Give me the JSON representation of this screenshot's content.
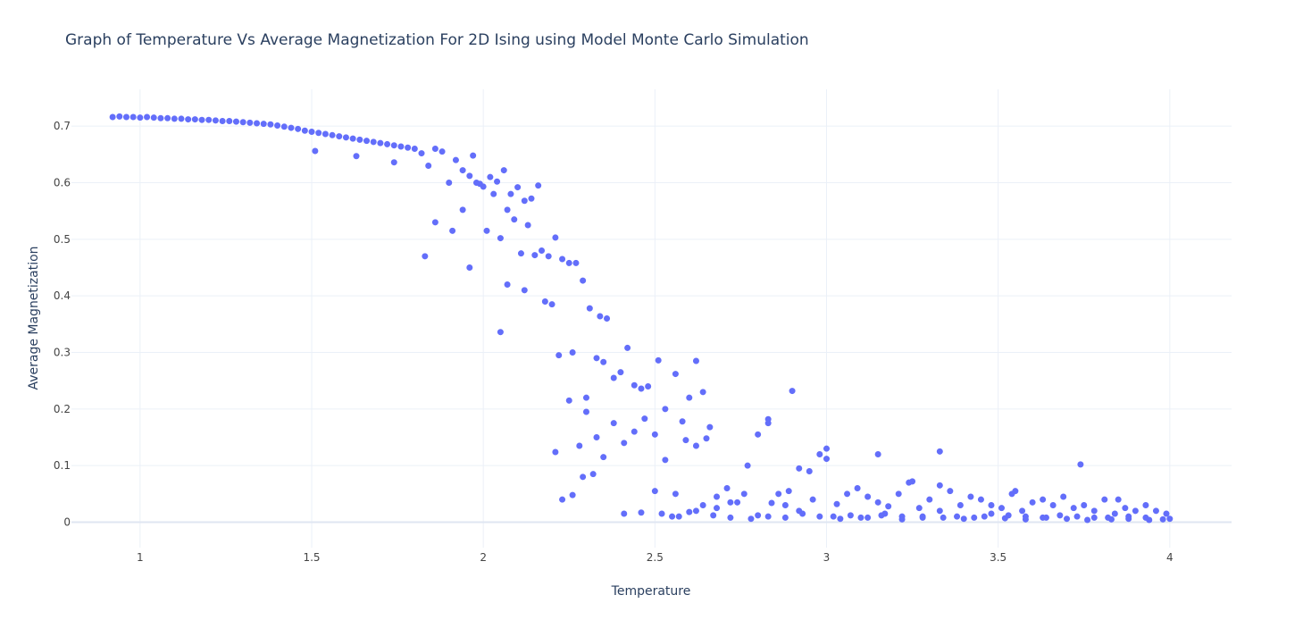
{
  "chart_data": {
    "type": "scatter",
    "title": "Graph of Temperature Vs Average Magnetization For 2D Ising using Model Monte Carlo Simulation",
    "xlabel": "Temperature",
    "ylabel": "Average Magnetization",
    "xlim": [
      0.8,
      4.18
    ],
    "ylim": [
      -0.045,
      0.765
    ],
    "x_ticks": [
      1,
      1.5,
      2,
      2.5,
      3,
      3.5,
      4
    ],
    "x_tick_labels": [
      "1",
      "1.5",
      "2",
      "2.5",
      "3",
      "3.5",
      "4"
    ],
    "y_ticks": [
      0,
      0.1,
      0.2,
      0.3,
      0.4,
      0.5,
      0.6,
      0.7
    ],
    "y_tick_labels": [
      "0",
      "0.1",
      "0.2",
      "0.3",
      "0.4",
      "0.5",
      "0.6",
      "0.7"
    ],
    "grid": true,
    "marker_color": "#636efa",
    "x": [
      0.92,
      0.94,
      0.96,
      0.98,
      1.0,
      1.02,
      1.04,
      1.06,
      1.08,
      1.1,
      1.12,
      1.14,
      1.16,
      1.18,
      1.2,
      1.22,
      1.24,
      1.26,
      1.28,
      1.3,
      1.32,
      1.34,
      1.36,
      1.38,
      1.4,
      1.42,
      1.44,
      1.46,
      1.48,
      1.5,
      1.52,
      1.54,
      1.56,
      1.58,
      1.6,
      1.62,
      1.64,
      1.66,
      1.68,
      1.7,
      1.72,
      1.74,
      1.76,
      1.78,
      1.8,
      1.51,
      1.63,
      1.74,
      1.82,
      1.84,
      1.86,
      1.88,
      1.9,
      1.92,
      1.94,
      1.96,
      1.98,
      2.0,
      2.02,
      2.04,
      2.06,
      2.08,
      2.1,
      2.12,
      2.14,
      2.16,
      1.83,
      1.86,
      1.91,
      1.94,
      1.97,
      1.99,
      2.01,
      2.03,
      2.05,
      2.07,
      2.09,
      2.11,
      2.13,
      2.15,
      2.17,
      2.19,
      2.21,
      2.23,
      2.25,
      2.27,
      2.29,
      2.31,
      2.34,
      2.36,
      1.96,
      2.05,
      2.07,
      2.12,
      2.18,
      2.2,
      2.22,
      2.26,
      2.3,
      2.33,
      2.21,
      2.25,
      2.28,
      2.3,
      2.33,
      2.35,
      2.38,
      2.4,
      2.42,
      2.44,
      2.46,
      2.48,
      2.51,
      2.53,
      2.56,
      2.58,
      2.6,
      2.62,
      2.64,
      2.66,
      2.23,
      2.26,
      2.29,
      2.32,
      2.35,
      2.38,
      2.41,
      2.44,
      2.47,
      2.5,
      2.53,
      2.56,
      2.59,
      2.62,
      2.65,
      2.68,
      2.71,
      2.74,
      2.77,
      2.8,
      2.83,
      2.86,
      2.89,
      2.92,
      2.95,
      2.98,
      2.41,
      2.46,
      2.5,
      2.55,
      2.6,
      2.64,
      2.68,
      2.72,
      2.76,
      2.8,
      2.84,
      2.88,
      2.92,
      2.96,
      3.0,
      3.03,
      3.06,
      3.09,
      3.12,
      3.15,
      3.18,
      3.21,
      3.24,
      3.27,
      3.3,
      3.33,
      3.36,
      3.39,
      3.42,
      3.45,
      3.48,
      3.51,
      3.54,
      3.57,
      3.6,
      3.63,
      3.66,
      3.69,
      3.72,
      3.75,
      3.78,
      3.81,
      3.84,
      3.87,
      3.9,
      3.93,
      3.96,
      3.99,
      3.02,
      3.07,
      3.12,
      3.17,
      3.22,
      3.28,
      3.33,
      3.38,
      3.43,
      3.48,
      3.53,
      3.58,
      3.63,
      3.68,
      3.73,
      3.78,
      3.83,
      3.88,
      3.93,
      3.98,
      2.52,
      2.57,
      2.62,
      2.67,
      2.72,
      2.78,
      2.83,
      2.88,
      2.93,
      2.98,
      3.04,
      3.1,
      3.16,
      3.22,
      3.28,
      3.34,
      3.4,
      3.46,
      3.52,
      3.58,
      3.64,
      3.7,
      3.76,
      3.82,
      3.88,
      3.94,
      3.74,
      3.33,
      3.15,
      2.9,
      2.83,
      3.0,
      3.25,
      3.55,
      3.85,
      4.0
    ],
    "y": [
      0.716,
      0.717,
      0.716,
      0.716,
      0.715,
      0.716,
      0.715,
      0.714,
      0.714,
      0.713,
      0.713,
      0.712,
      0.712,
      0.711,
      0.711,
      0.71,
      0.709,
      0.709,
      0.708,
      0.707,
      0.706,
      0.705,
      0.704,
      0.703,
      0.701,
      0.699,
      0.697,
      0.695,
      0.692,
      0.69,
      0.688,
      0.686,
      0.684,
      0.682,
      0.68,
      0.678,
      0.676,
      0.674,
      0.672,
      0.67,
      0.668,
      0.666,
      0.664,
      0.662,
      0.66,
      0.656,
      0.647,
      0.636,
      0.652,
      0.63,
      0.66,
      0.655,
      0.6,
      0.64,
      0.622,
      0.612,
      0.6,
      0.593,
      0.61,
      0.602,
      0.622,
      0.58,
      0.592,
      0.568,
      0.572,
      0.595,
      0.47,
      0.53,
      0.515,
      0.552,
      0.648,
      0.598,
      0.515,
      0.58,
      0.502,
      0.552,
      0.535,
      0.475,
      0.525,
      0.472,
      0.48,
      0.47,
      0.503,
      0.465,
      0.458,
      0.458,
      0.427,
      0.378,
      0.364,
      0.36,
      0.45,
      0.336,
      0.42,
      0.41,
      0.39,
      0.385,
      0.295,
      0.3,
      0.22,
      0.29,
      0.124,
      0.215,
      0.135,
      0.195,
      0.15,
      0.283,
      0.255,
      0.265,
      0.308,
      0.242,
      0.236,
      0.24,
      0.286,
      0.2,
      0.262,
      0.178,
      0.22,
      0.285,
      0.23,
      0.168,
      0.04,
      0.048,
      0.08,
      0.085,
      0.115,
      0.175,
      0.14,
      0.16,
      0.183,
      0.155,
      0.11,
      0.05,
      0.145,
      0.135,
      0.148,
      0.045,
      0.06,
      0.035,
      0.1,
      0.155,
      0.175,
      0.05,
      0.055,
      0.095,
      0.09,
      0.12,
      0.015,
      0.017,
      0.055,
      0.01,
      0.018,
      0.03,
      0.025,
      0.035,
      0.05,
      0.012,
      0.034,
      0.03,
      0.02,
      0.04,
      0.13,
      0.032,
      0.05,
      0.06,
      0.045,
      0.035,
      0.028,
      0.05,
      0.07,
      0.025,
      0.04,
      0.065,
      0.055,
      0.03,
      0.045,
      0.04,
      0.03,
      0.025,
      0.05,
      0.02,
      0.035,
      0.04,
      0.03,
      0.045,
      0.025,
      0.03,
      0.02,
      0.04,
      0.015,
      0.025,
      0.02,
      0.03,
      0.02,
      0.015,
      0.01,
      0.012,
      0.008,
      0.015,
      0.01,
      0.008,
      0.02,
      0.01,
      0.008,
      0.015,
      0.012,
      0.01,
      0.008,
      0.012,
      0.01,
      0.008,
      0.005,
      0.01,
      0.008,
      0.005,
      0.015,
      0.01,
      0.02,
      0.012,
      0.008,
      0.006,
      0.01,
      0.008,
      0.015,
      0.01,
      0.006,
      0.008,
      0.012,
      0.005,
      0.01,
      0.008,
      0.006,
      0.01,
      0.007,
      0.005,
      0.008,
      0.006,
      0.004,
      0.008,
      0.006,
      0.004,
      0.102,
      0.125,
      0.12,
      0.232,
      0.182,
      0.112,
      0.072,
      0.055,
      0.04,
      0.006
    ]
  }
}
